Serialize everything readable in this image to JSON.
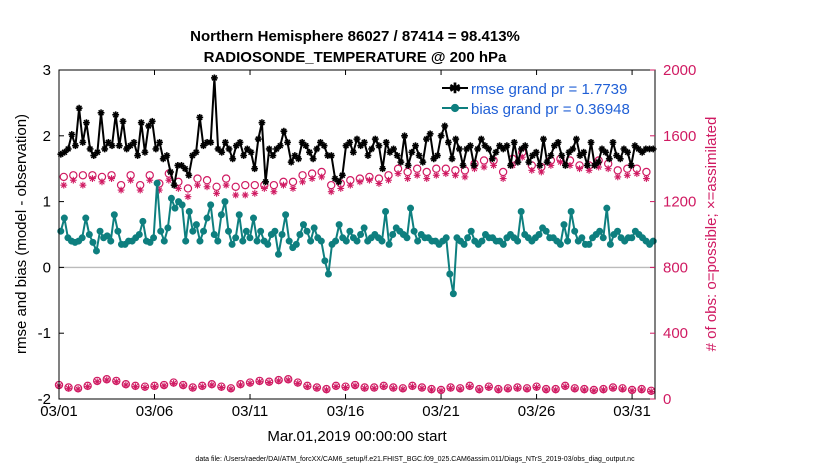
{
  "chart_data": {
    "type": "line",
    "title_line1": "Northern Hemisphere 86027 / 87414 = 98.413%",
    "title_line2": "RADIOSONDE_TEMPERATURE @ 200 hPa",
    "xlabel": "Mar.01,2019 00:00:00 start",
    "ylabel_left": "rmse and bias (model - observation)",
    "ylabel_right": "# of obs: o=possible; ×=assimilated",
    "x_tick_labels": [
      "03/01",
      "03/06",
      "03/11",
      "03/16",
      "03/21",
      "03/26",
      "03/31"
    ],
    "x_ticks_day": [
      0,
      5,
      10,
      15,
      20,
      25,
      30
    ],
    "xlim_days": [
      0,
      31.2
    ],
    "ylim_left": [
      -2,
      3
    ],
    "y_ticks_left": [
      "-2",
      "-1",
      "0",
      "1",
      "2",
      "3"
    ],
    "ylim_right": [
      0,
      2000
    ],
    "y_ticks_right": [
      "0",
      "400",
      "800",
      "1200",
      "1600",
      "2000"
    ],
    "legend": [
      {
        "label": "rmse grand pr = 1.7739",
        "color": "#000000"
      },
      {
        "label": "bias grand pr = 0.36948",
        "color": "#0e7f7f"
      }
    ],
    "series": [
      {
        "name": "rmse",
        "color": "#000000",
        "marker": "asterisk",
        "values": [
          1.72,
          1.75,
          1.8,
          2.02,
          1.85,
          2.42,
          1.9,
          2.2,
          1.8,
          1.7,
          1.75,
          2.35,
          1.8,
          1.9,
          1.85,
          2.32,
          1.85,
          2.22,
          1.8,
          1.85,
          1.9,
          1.7,
          2.2,
          1.75,
          2.15,
          2.22,
          1.8,
          1.9,
          1.65,
          1.7,
          1.45,
          1.25,
          1.55,
          1.55,
          1.5,
          1.4,
          1.7,
          1.75,
          2.28,
          1.85,
          1.9,
          1.9,
          2.88,
          1.8,
          1.75,
          1.9,
          1.8,
          1.65,
          1.85,
          1.9,
          1.7,
          1.8,
          1.75,
          1.5,
          1.95,
          2.2,
          1.3,
          1.8,
          1.7,
          1.8,
          1.85,
          2.07,
          1.9,
          1.6,
          1.7,
          1.65,
          1.9,
          1.85,
          1.75,
          1.65,
          1.8,
          1.9,
          1.85,
          1.7,
          1.7,
          1.35,
          1.3,
          1.4,
          1.85,
          1.9,
          1.75,
          1.95,
          1.85,
          1.9,
          1.7,
          1.8,
          1.95,
          1.85,
          1.5,
          1.9,
          1.75,
          1.8,
          1.7,
          1.6,
          2.0,
          1.55,
          1.75,
          1.85,
          1.7,
          1.6,
          1.95,
          2.03,
          1.65,
          1.7,
          2.0,
          2.15,
          1.9,
          1.65,
          1.95,
          1.8,
          1.55,
          1.8,
          1.85,
          1.55,
          1.8,
          1.95,
          1.85,
          1.8,
          1.65,
          1.75,
          1.85,
          1.8,
          1.85,
          1.55,
          1.9,
          1.6,
          1.8,
          1.85,
          1.6,
          1.7,
          1.75,
          1.55,
          1.95,
          1.6,
          1.7,
          1.85,
          1.9,
          1.7,
          1.55,
          1.75,
          1.8,
          1.95,
          1.7,
          1.75,
          1.55,
          1.9,
          1.55,
          1.6,
          1.8,
          1.75,
          1.65,
          1.9,
          1.7,
          1.65,
          1.8,
          1.75,
          1.55,
          1.85,
          1.8,
          1.75,
          1.8,
          1.8,
          1.8
        ]
      },
      {
        "name": "bias",
        "color": "#0e7f7f",
        "marker": "circle",
        "values": [
          0.55,
          0.75,
          0.45,
          0.4,
          0.38,
          0.4,
          0.45,
          0.75,
          0.5,
          0.38,
          0.25,
          0.55,
          0.45,
          0.48,
          0.4,
          0.8,
          0.55,
          0.35,
          0.35,
          0.4,
          0.4,
          0.45,
          0.5,
          0.7,
          0.4,
          0.38,
          0.45,
          1.28,
          0.55,
          0.4,
          0.6,
          1.05,
          0.9,
          1.0,
          0.95,
          0.4,
          0.85,
          0.55,
          0.65,
          0.4,
          0.55,
          0.75,
          0.95,
          0.5,
          0.4,
          0.8,
          1.0,
          0.55,
          0.35,
          0.45,
          0.8,
          0.4,
          0.55,
          0.45,
          0.75,
          0.4,
          0.55,
          0.4,
          0.35,
          0.5,
          0.55,
          0.2,
          0.5,
          0.8,
          0.4,
          0.3,
          0.35,
          0.5,
          0.65,
          0.55,
          0.4,
          0.6,
          0.45,
          0.4,
          0.1,
          -0.1,
          0.35,
          0.4,
          0.65,
          0.45,
          0.4,
          0.55,
          0.45,
          0.4,
          0.5,
          0.6,
          0.4,
          0.45,
          0.5,
          0.45,
          0.4,
          0.85,
          0.35,
          0.5,
          0.6,
          0.55,
          0.5,
          0.45,
          0.9,
          0.55,
          0.4,
          0.5,
          0.45,
          0.45,
          0.4,
          0.4,
          0.35,
          0.4,
          0.45,
          -0.1,
          -0.4,
          0.45,
          0.4,
          0.35,
          0.45,
          0.55,
          0.4,
          0.35,
          0.4,
          0.5,
          0.45,
          0.45,
          0.4,
          0.4,
          0.35,
          0.45,
          0.5,
          0.45,
          0.4,
          0.85,
          0.5,
          0.45,
          0.4,
          0.45,
          0.5,
          0.6,
          0.55,
          0.45,
          0.45,
          0.4,
          0.35,
          0.65,
          0.4,
          0.85,
          0.55,
          0.4,
          0.45,
          0.35,
          0.35,
          0.45,
          0.5,
          0.55,
          0.45,
          0.9,
          0.35,
          0.5,
          0.55,
          0.45,
          0.4,
          0.45,
          0.45,
          0.55,
          0.5,
          0.45,
          0.4,
          0.35,
          0.4
        ]
      },
      {
        "name": "obs possible (synoptic)",
        "axis": "right",
        "color": "#d01a62",
        "marker": "circle",
        "values": [
          1350,
          1360,
          1360,
          1360,
          1350,
          1360,
          1300,
          1360,
          1300,
          1360,
          1310,
          1370,
          1320,
          1280,
          1340,
          1330,
          1290,
          1340,
          1290,
          1300,
          1300,
          1300,
          1300,
          1320,
          1320,
          1360,
          1370,
          1380,
          1300,
          1310,
          1330,
          1340,
          1350,
          1340,
          1360,
          1400,
          1380,
          1400,
          1380,
          1400,
          1400,
          1390,
          1390,
          1430,
          1450,
          1450,
          1380,
          1460,
          1500,
          1420,
          1410,
          1450,
          1460,
          1450,
          1420,
          1420,
          1450,
          1430,
          1390,
          1400,
          1400,
          1380
        ]
      },
      {
        "name": "obs assimilated (synoptic)",
        "axis": "right",
        "color": "#d01a62",
        "marker": "asterisk",
        "values": [
          1300,
          1330,
          1300,
          1340,
          1320,
          1340,
          1270,
          1330,
          1270,
          1330,
          1270,
          1330,
          1280,
          1230,
          1300,
          1290,
          1250,
          1300,
          1240,
          1240,
          1250,
          1280,
          1260,
          1300,
          1280,
          1320,
          1340,
          1350,
          1260,
          1280,
          1300,
          1320,
          1330,
          1310,
          1330,
          1370,
          1340,
          1360,
          1340,
          1360,
          1370,
          1360,
          1350,
          1400,
          1410,
          1420,
          1340,
          1420,
          1470,
          1390,
          1380,
          1420,
          1440,
          1420,
          1400,
          1390,
          1410,
          1400,
          1350,
          1360,
          1370,
          1340
        ]
      },
      {
        "name": "obs possible (off-synoptic)",
        "axis": "right",
        "color": "#d01a62",
        "marker": "circle",
        "values": [
          85,
          70,
          65,
          80,
          110,
          120,
          110,
          90,
          80,
          75,
          80,
          85,
          100,
          85,
          70,
          80,
          90,
          75,
          65,
          90,
          100,
          110,
          105,
          115,
          120,
          100,
          80,
          70,
          60,
          80,
          75,
          85,
          70,
          70,
          80,
          70,
          65,
          80,
          70,
          60,
          55,
          70,
          65,
          80,
          60,
          75,
          60,
          65,
          70,
          65,
          75,
          60,
          60,
          80,
          65,
          60,
          55,
          60,
          70,
          65,
          55,
          60,
          50
        ]
      },
      {
        "name": "obs assimilated (off-synoptic)",
        "axis": "right",
        "color": "#d01a62",
        "marker": "asterisk",
        "values": [
          80,
          65,
          60,
          75,
          105,
          115,
          105,
          85,
          75,
          70,
          75,
          80,
          95,
          80,
          65,
          75,
          85,
          70,
          60,
          85,
          95,
          105,
          100,
          110,
          115,
          95,
          75,
          65,
          55,
          75,
          70,
          80,
          65,
          65,
          75,
          65,
          60,
          75,
          65,
          55,
          50,
          65,
          60,
          75,
          55,
          70,
          55,
          60,
          65,
          60,
          70,
          55,
          55,
          75,
          60,
          55,
          50,
          55,
          65,
          60,
          50,
          55,
          45
        ]
      }
    ],
    "footnote": "data file: /Users/raeder/DAI/ATM_forcXX/CAM6_setup/f.e21.FHIST_BGC.f09_025.CAM6assim.011/Diags_NTrS_2019-03/obs_diag_output.nc"
  }
}
